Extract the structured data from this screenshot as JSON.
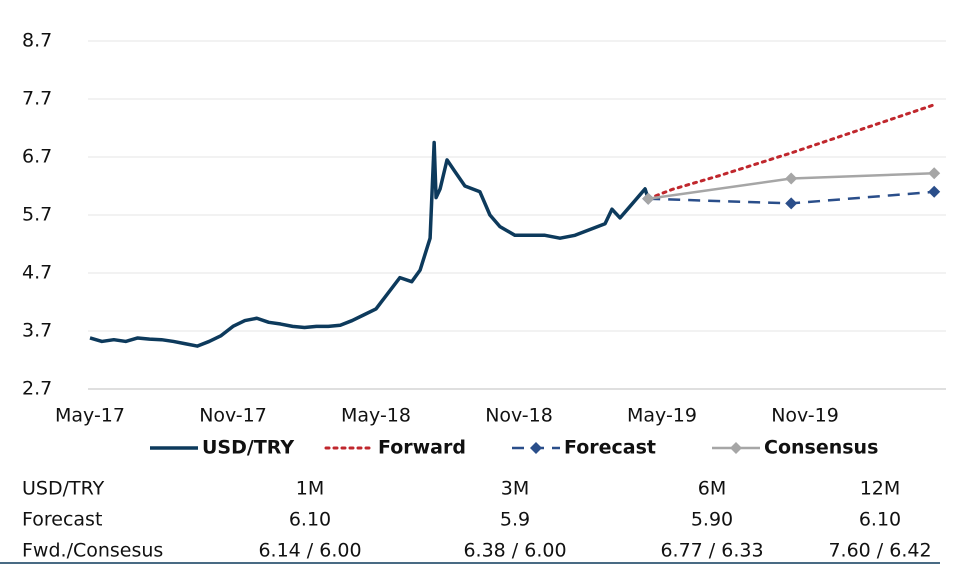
{
  "chart_data": {
    "type": "line",
    "xlim": [
      0,
      36
    ],
    "xticks": [
      {
        "value": 0,
        "label": "May-17"
      },
      {
        "value": 6,
        "label": "Nov-17"
      },
      {
        "value": 12,
        "label": "May-18"
      },
      {
        "value": 18,
        "label": "Nov-18"
      },
      {
        "value": 24,
        "label": "May-19"
      },
      {
        "value": 30,
        "label": "Nov-19"
      }
    ],
    "ylim": [
      2.7,
      8.7
    ],
    "yticks": [
      2.7,
      3.7,
      4.7,
      5.7,
      6.7,
      7.7,
      8.7
    ],
    "grid": true,
    "series": [
      {
        "name": "USD/TRY",
        "color": "#0d3a5c",
        "style": "solid",
        "marker": "none",
        "x": [
          0,
          0.5,
          1,
          1.5,
          2,
          2.5,
          3,
          3.5,
          4,
          4.5,
          5,
          5.5,
          6,
          6.5,
          7,
          7.5,
          8,
          8.5,
          9,
          9.5,
          10,
          10.5,
          11,
          11.5,
          12,
          12.5,
          13,
          13.5,
          13.85,
          14.27,
          14.44,
          14.52,
          14.69,
          14.98,
          15.31,
          15.73,
          16.36,
          16.78,
          17.2,
          17.83,
          18.46,
          19.09,
          19.72,
          20.35,
          20.98,
          21.61,
          21.9,
          22.24,
          22.66,
          23.08,
          23.29,
          23.42
        ],
        "values": [
          3.58,
          3.52,
          3.55,
          3.52,
          3.58,
          3.56,
          3.55,
          3.52,
          3.48,
          3.44,
          3.52,
          3.62,
          3.78,
          3.88,
          3.92,
          3.85,
          3.82,
          3.78,
          3.76,
          3.78,
          3.78,
          3.8,
          3.88,
          3.98,
          4.08,
          4.35,
          4.62,
          4.55,
          4.75,
          5.3,
          6.95,
          6.0,
          6.15,
          6.65,
          6.45,
          6.2,
          6.1,
          5.7,
          5.5,
          5.35,
          5.35,
          5.35,
          5.3,
          5.35,
          5.45,
          5.55,
          5.8,
          5.65,
          5.85,
          6.05,
          6.15,
          5.98
        ]
      },
      {
        "name": "Forward",
        "color": "#c0272d",
        "style": "dotted",
        "marker": "none",
        "x": [
          23.42,
          24.42,
          26.42,
          29.42,
          35.42
        ],
        "values": [
          5.98,
          6.14,
          6.38,
          6.77,
          7.6
        ]
      },
      {
        "name": "Forecast",
        "color": "#2a4e8a",
        "style": "dashed",
        "marker": "diamond",
        "x": [
          23.42,
          29.42,
          35.42
        ],
        "values": [
          5.98,
          5.9,
          6.1
        ]
      },
      {
        "name": "Consensus",
        "color": "#a6a6a6",
        "style": "solid",
        "marker": "diamond",
        "x": [
          23.42,
          29.42,
          35.42
        ],
        "values": [
          5.98,
          6.33,
          6.42
        ]
      }
    ]
  },
  "table": {
    "header": [
      "USD/TRY",
      "1M",
      "3M",
      "6M",
      "12M"
    ],
    "rows": [
      [
        "Forecast",
        "6.10",
        "5.9",
        "5.90",
        "6.10"
      ],
      [
        "Fwd./Consesus",
        "6.14 / 6.00",
        "6.38 / 6.00",
        "6.77 / 6.33",
        "7.60 / 6.42"
      ]
    ]
  }
}
